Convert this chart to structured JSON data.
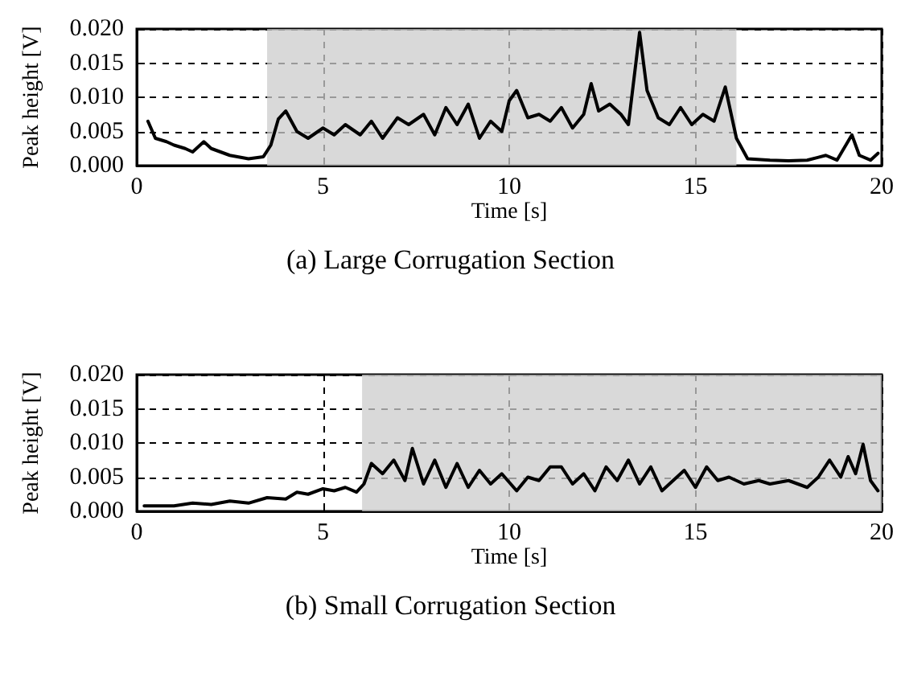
{
  "chart_data": [
    {
      "type": "line",
      "title": "(a) Large Corrugation Section",
      "xlabel": "Time [s]",
      "ylabel": "Peak height [V]",
      "xlim": [
        0,
        20
      ],
      "xticks": [
        0,
        5,
        10,
        15,
        20
      ],
      "ylim": [
        0,
        0.02
      ],
      "yticks": [
        {
          "value": 0,
          "label": "0.000"
        },
        {
          "value": 0.005,
          "label": "0.005"
        },
        {
          "value": 0.01,
          "label": "0.010"
        },
        {
          "value": 0.015,
          "label": "0.015"
        },
        {
          "value": 0.02,
          "label": "0.020"
        }
      ],
      "grid": true,
      "line_style": "solid",
      "marker": "none",
      "bands": [
        {
          "axis": "x",
          "from": 3.5,
          "to": 16.1,
          "color": "#cccccc"
        }
      ],
      "series": [
        {
          "color": "#000000",
          "x": [
            0.3,
            0.5,
            0.8,
            1.0,
            1.3,
            1.5,
            1.8,
            2.0,
            2.5,
            3.0,
            3.4,
            3.6,
            3.8,
            4.0,
            4.3,
            4.6,
            5.0,
            5.3,
            5.6,
            6.0,
            6.3,
            6.6,
            7.0,
            7.3,
            7.7,
            8.0,
            8.3,
            8.6,
            8.9,
            9.2,
            9.5,
            9.8,
            10.0,
            10.2,
            10.5,
            10.8,
            11.1,
            11.4,
            11.7,
            12.0,
            12.2,
            12.4,
            12.7,
            13.0,
            13.2,
            13.5,
            13.7,
            14.0,
            14.3,
            14.6,
            14.9,
            15.2,
            15.5,
            15.8,
            16.1,
            16.4,
            17.0,
            17.5,
            18.0,
            18.5,
            18.8,
            19.2,
            19.4,
            19.7,
            19.9
          ],
          "values": [
            0.0065,
            0.004,
            0.0035,
            0.003,
            0.0025,
            0.002,
            0.0035,
            0.0025,
            0.0015,
            0.001,
            0.0013,
            0.003,
            0.0068,
            0.008,
            0.005,
            0.004,
            0.0055,
            0.0045,
            0.006,
            0.0045,
            0.0065,
            0.004,
            0.007,
            0.006,
            0.0075,
            0.0045,
            0.0085,
            0.006,
            0.009,
            0.004,
            0.0065,
            0.005,
            0.0095,
            0.011,
            0.007,
            0.0075,
            0.0065,
            0.0085,
            0.0055,
            0.0075,
            0.012,
            0.008,
            0.009,
            0.0075,
            0.006,
            0.0195,
            0.011,
            0.007,
            0.006,
            0.0085,
            0.006,
            0.0075,
            0.0065,
            0.0115,
            0.004,
            0.001,
            0.0008,
            0.0007,
            0.0008,
            0.0015,
            0.0008,
            0.0045,
            0.0015,
            0.0008,
            0.0018
          ]
        }
      ]
    },
    {
      "type": "line",
      "title": "(b) Small Corrugation Section",
      "xlabel": "Time [s]",
      "ylabel": "Peak height [V]",
      "xlim": [
        0,
        20
      ],
      "xticks": [
        0,
        5,
        10,
        15,
        20
      ],
      "ylim": [
        0,
        0.02
      ],
      "yticks": [
        {
          "value": 0,
          "label": "0.000"
        },
        {
          "value": 0.005,
          "label": "0.005"
        },
        {
          "value": 0.01,
          "label": "0.010"
        },
        {
          "value": 0.015,
          "label": "0.015"
        },
        {
          "value": 0.02,
          "label": "0.020"
        }
      ],
      "grid": true,
      "line_style": "solid",
      "marker": "none",
      "bands": [
        {
          "axis": "x",
          "from": 6.05,
          "to": 20,
          "color": "#cccccc"
        }
      ],
      "series": [
        {
          "color": "#000000",
          "x": [
            0.2,
            1,
            1.5,
            2,
            2.5,
            3,
            3.5,
            4,
            4.3,
            4.6,
            5,
            5.3,
            5.6,
            5.9,
            6.1,
            6.3,
            6.6,
            6.9,
            7.2,
            7.4,
            7.7,
            8.0,
            8.3,
            8.6,
            8.9,
            9.2,
            9.5,
            9.8,
            10.2,
            10.5,
            10.8,
            11.1,
            11.4,
            11.7,
            12.0,
            12.3,
            12.6,
            12.9,
            13.2,
            13.5,
            13.8,
            14.1,
            14.4,
            14.7,
            15.0,
            15.3,
            15.6,
            15.9,
            16.3,
            16.7,
            17.0,
            17.5,
            18.0,
            18.3,
            18.6,
            18.9,
            19.1,
            19.3,
            19.5,
            19.7,
            19.9
          ],
          "values": [
            0.0008,
            0.0008,
            0.0012,
            0.001,
            0.0015,
            0.0012,
            0.002,
            0.0018,
            0.0028,
            0.0025,
            0.0033,
            0.003,
            0.0035,
            0.0028,
            0.004,
            0.007,
            0.0055,
            0.0075,
            0.0045,
            0.0092,
            0.004,
            0.0075,
            0.0035,
            0.007,
            0.0035,
            0.006,
            0.004,
            0.0055,
            0.003,
            0.005,
            0.0045,
            0.0065,
            0.0065,
            0.004,
            0.0055,
            0.003,
            0.0065,
            0.0045,
            0.0075,
            0.004,
            0.0065,
            0.003,
            0.0045,
            0.006,
            0.0035,
            0.0065,
            0.0045,
            0.005,
            0.004,
            0.0045,
            0.004,
            0.0045,
            0.0035,
            0.005,
            0.0075,
            0.005,
            0.008,
            0.0055,
            0.0098,
            0.0045,
            0.003
          ]
        }
      ]
    }
  ]
}
